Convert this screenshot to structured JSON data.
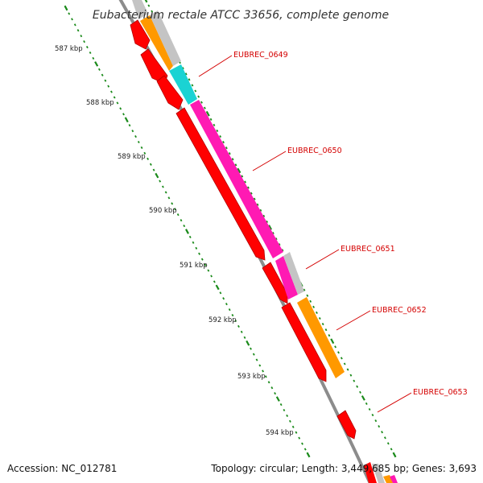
{
  "title": "Eubacterium rectale ATCC 33656, complete genome",
  "footer": {
    "accession": "Accession: NC_012781",
    "topology": "Topology: circular; Length: 3,449,685 bp; Genes: 3,693"
  },
  "ruler_labels": [
    "587 kbp",
    "588 kbp",
    "589 kbp",
    "590 kbp",
    "591 kbp",
    "592 kbp",
    "593 kbp",
    "594 kbp"
  ],
  "gene_labels": [
    "EUBREC_0649",
    "EUBREC_0650",
    "EUBREC_0651",
    "EUBREC_0652",
    "EUBREC_0653"
  ],
  "colors": {
    "backbone": "#8c8c8c",
    "cds": "#ff0000",
    "cds_outline": "#b30000",
    "magenta": "#ff1ab3",
    "cyan": "#1ad3d3",
    "orange": "#ff9900",
    "gray": "#c4c4c4",
    "tick": "#1a8a1a",
    "label": "#d40000"
  }
}
